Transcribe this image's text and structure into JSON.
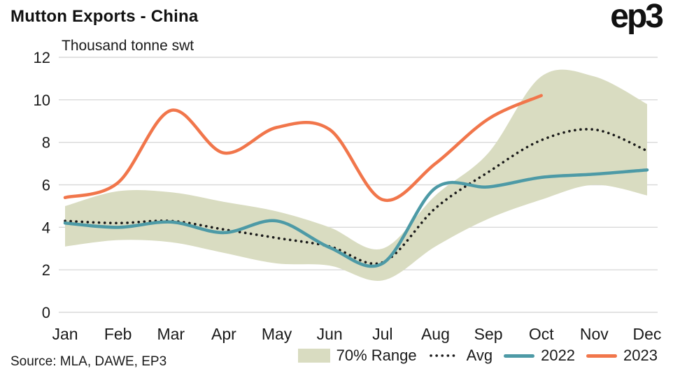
{
  "header": {
    "title": "Mutton Exports - China",
    "logo": "ep3"
  },
  "source": "Source: MLA, DAWE, EP3",
  "chart_data": {
    "type": "line",
    "title": "Mutton Exports - China",
    "subtitle": "Thousand tonne swt",
    "ylabel": "Thousand tonne swt",
    "categories": [
      "Jan",
      "Feb",
      "Mar",
      "Apr",
      "May",
      "Jun",
      "Jul",
      "Aug",
      "Sep",
      "Oct",
      "Nov",
      "Dec"
    ],
    "ylim": [
      0,
      12
    ],
    "yticks": [
      0,
      2,
      4,
      6,
      8,
      10,
      12
    ],
    "grid": "horizontal",
    "grid_color": "#d9d9d9",
    "axis_color": "#1a1a1a",
    "legend_position": "bottom",
    "band": {
      "name": "70% Range",
      "color": "#d9dcc1",
      "upper": [
        5.0,
        5.7,
        5.65,
        5.2,
        4.75,
        4.0,
        3.0,
        5.5,
        7.5,
        11.1,
        11.1,
        9.8
      ],
      "lower": [
        3.1,
        3.4,
        3.3,
        2.8,
        2.3,
        2.2,
        1.5,
        3.1,
        4.4,
        5.3,
        6.0,
        5.5
      ]
    },
    "series": [
      {
        "name": "Avg",
        "style": "dotted",
        "color": "#1a1a1a",
        "values": [
          4.3,
          4.2,
          4.3,
          3.9,
          3.5,
          3.1,
          2.35,
          4.9,
          6.6,
          8.1,
          8.6,
          7.6
        ]
      },
      {
        "name": "2022",
        "style": "solid",
        "color": "#4d9aa6",
        "values": [
          4.2,
          4.0,
          4.25,
          3.75,
          4.3,
          3.05,
          2.3,
          5.85,
          5.9,
          6.35,
          6.5,
          6.7
        ]
      },
      {
        "name": "2023",
        "style": "solid",
        "color": "#f1764b",
        "values": [
          5.4,
          6.1,
          9.5,
          7.5,
          8.7,
          8.6,
          5.3,
          7.0,
          9.1,
          10.2,
          null,
          null
        ]
      }
    ]
  },
  "legend": {
    "range_label": "70% Range",
    "avg_label": "Avg",
    "s2022_label": "2022",
    "s2023_label": "2023"
  }
}
